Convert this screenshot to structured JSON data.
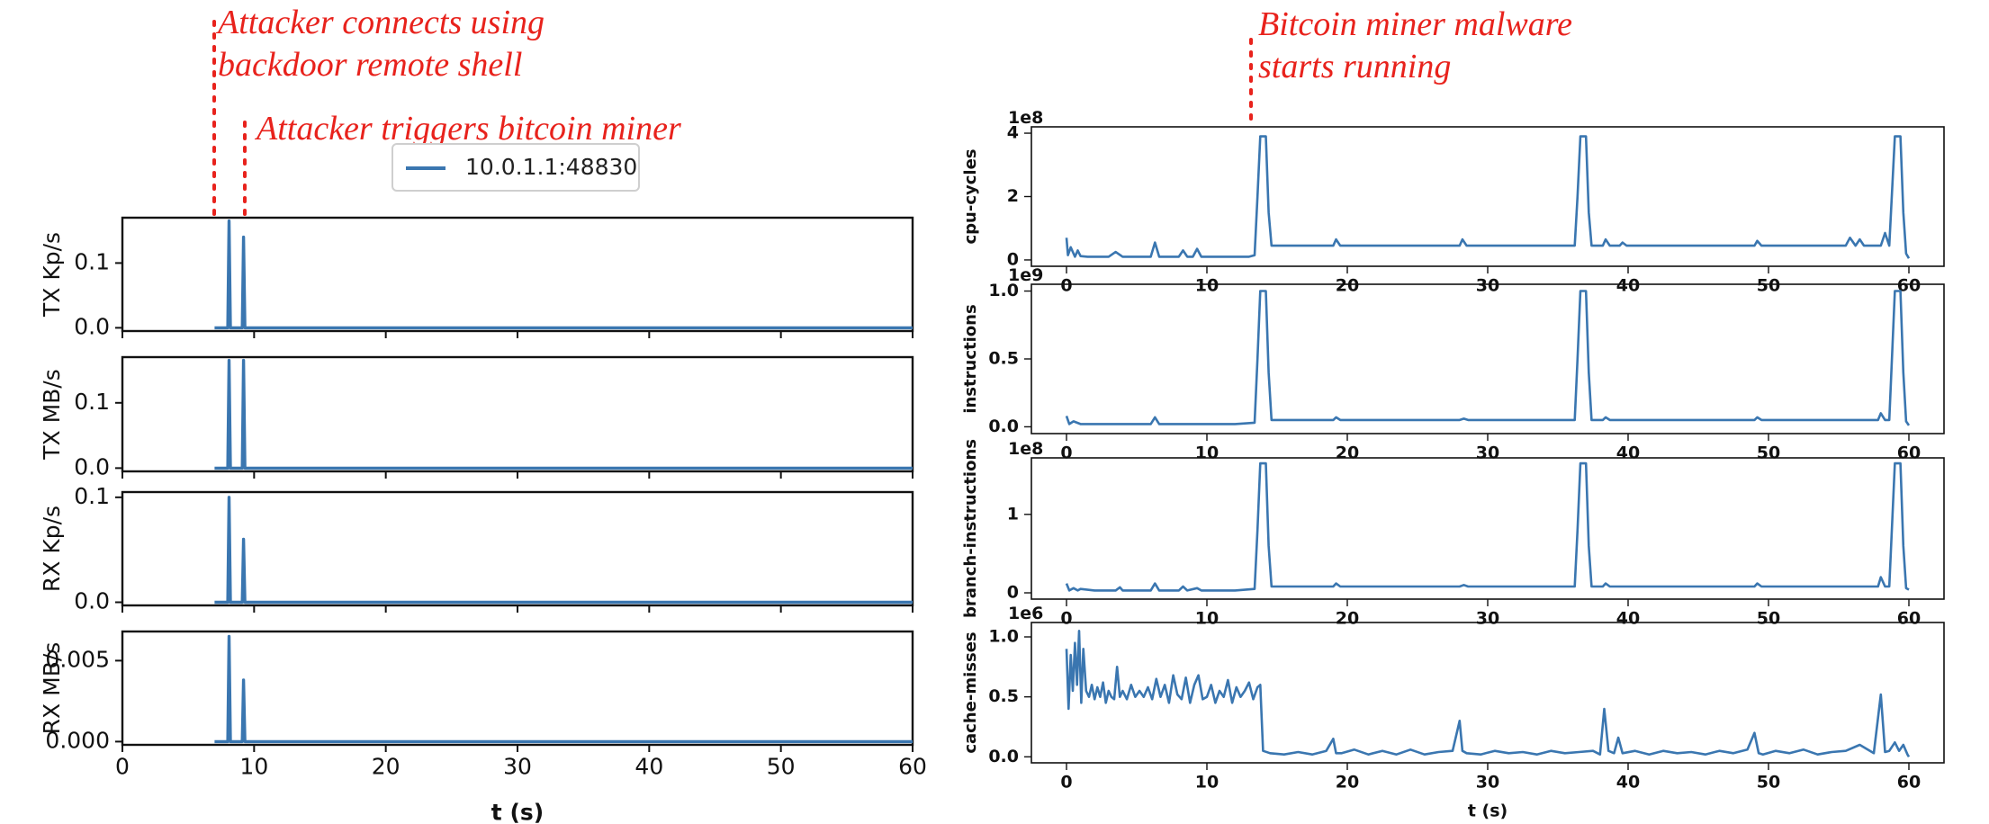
{
  "annotations": {
    "connect": [
      "Attacker connects using",
      "backdoor remote shell"
    ],
    "trigger": "Attacker triggers bitcoin miner",
    "malware": [
      "Bitcoin miner malware",
      "starts running"
    ]
  },
  "colors": {
    "series": "#3a76b0",
    "annotation": "#e8221c"
  },
  "chart_data": [
    {
      "type": "line",
      "panel": "network",
      "ylabel": "TX Kp/s",
      "xlim": [
        0,
        60
      ],
      "ylim": [
        -0.005,
        0.17
      ],
      "yticks": [
        0.0,
        0.1
      ],
      "ytick_labels": [
        "0.0",
        "0.1"
      ],
      "xtick_labels_shown": false,
      "series": [
        {
          "name": "10.0.1.1:48830",
          "x": [
            7,
            8.0,
            8.1,
            8.2,
            9.1,
            9.2,
            9.3,
            60
          ],
          "y": [
            0,
            0,
            0.165,
            0,
            0,
            0.14,
            0,
            0
          ]
        }
      ]
    },
    {
      "type": "line",
      "panel": "network",
      "ylabel": "TX MB/s",
      "xlim": [
        0,
        60
      ],
      "ylim": [
        -0.005,
        0.17
      ],
      "yticks": [
        0.0,
        0.1
      ],
      "ytick_labels": [
        "0.0",
        "0.1"
      ],
      "xtick_labels_shown": false,
      "series": [
        {
          "name": "10.0.1.1:48830",
          "x": [
            7,
            8.0,
            8.1,
            8.2,
            9.1,
            9.2,
            9.3,
            60
          ],
          "y": [
            0,
            0,
            0.165,
            0,
            0,
            0.165,
            0,
            0
          ]
        }
      ]
    },
    {
      "type": "line",
      "panel": "network",
      "ylabel": "RX Kp/s",
      "xlim": [
        0,
        60
      ],
      "ylim": [
        -0.003,
        0.105
      ],
      "yticks": [
        0.0,
        0.1
      ],
      "ytick_labels": [
        "0.0",
        "0.1"
      ],
      "xtick_labels_shown": false,
      "series": [
        {
          "name": "10.0.1.1:48830",
          "x": [
            7,
            8.0,
            8.1,
            8.2,
            9.1,
            9.2,
            9.3,
            60
          ],
          "y": [
            0,
            0,
            0.1,
            0,
            0,
            0.06,
            0,
            0
          ]
        }
      ]
    },
    {
      "type": "line",
      "panel": "network",
      "ylabel": "RX MB/s",
      "xlim": [
        0,
        60
      ],
      "ylim": [
        -0.0002,
        0.0068
      ],
      "yticks": [
        0.0,
        0.005
      ],
      "ytick_labels": [
        "0.000",
        "0.005"
      ],
      "xticks": [
        0,
        10,
        20,
        30,
        40,
        50,
        60
      ],
      "xtick_labels": [
        "0",
        "10",
        "20",
        "30",
        "40",
        "50",
        "60"
      ],
      "xlabel": "t (s)",
      "series": [
        {
          "name": "10.0.1.1:48830",
          "x": [
            7,
            8.0,
            8.1,
            8.2,
            9.1,
            9.2,
            9.3,
            60
          ],
          "y": [
            0,
            0,
            0.0065,
            0,
            0,
            0.0038,
            0,
            0
          ]
        }
      ]
    },
    {
      "type": "line",
      "panel": "perf",
      "ylabel": "cpu-cycles",
      "scale_label": "1e8",
      "xlim": [
        -2.5,
        62.5
      ],
      "ylim": [
        -0.2,
        4.2
      ],
      "yticks": [
        0,
        2,
        4
      ],
      "ytick_labels": [
        "0",
        "2",
        "4"
      ],
      "xticks": [
        0,
        10,
        20,
        30,
        40,
        50,
        60
      ],
      "xtick_labels": [
        "0",
        "10",
        "20",
        "30",
        "40",
        "50",
        "60"
      ],
      "series": [
        {
          "x": [
            0.0,
            0.1,
            0.3,
            0.6,
            0.8,
            1.0,
            1.5,
            2.0,
            3.0,
            3.5,
            4.0,
            5.0,
            6.0,
            6.3,
            6.6,
            7.0,
            8.0,
            8.3,
            8.6,
            9.0,
            9.3,
            9.6,
            10.0,
            11.0,
            12.0,
            13.0,
            13.4,
            13.6,
            13.8,
            14.0,
            14.2,
            14.4,
            14.6,
            15.0,
            17.0,
            19.0,
            19.2,
            19.5,
            22.0,
            25.0,
            28.0,
            28.2,
            28.5,
            31.0,
            34.0,
            36.2,
            36.4,
            36.6,
            36.8,
            37.0,
            37.2,
            37.4,
            38.2,
            38.4,
            38.7,
            39.4,
            39.6,
            39.9,
            42.0,
            45.0,
            49.0,
            49.2,
            49.5,
            52.0,
            55.5,
            55.8,
            56.2,
            56.5,
            56.8,
            57.2,
            58.0,
            58.3,
            58.6,
            59.0,
            59.2,
            59.4,
            59.6,
            59.8,
            60.0
          ],
          "y": [
            0.7,
            0.15,
            0.4,
            0.1,
            0.3,
            0.12,
            0.1,
            0.1,
            0.1,
            0.25,
            0.1,
            0.1,
            0.1,
            0.55,
            0.1,
            0.1,
            0.1,
            0.3,
            0.1,
            0.1,
            0.35,
            0.1,
            0.1,
            0.1,
            0.1,
            0.1,
            0.15,
            2.0,
            3.9,
            3.9,
            3.9,
            1.5,
            0.45,
            0.45,
            0.45,
            0.45,
            0.65,
            0.45,
            0.45,
            0.45,
            0.45,
            0.65,
            0.45,
            0.45,
            0.45,
            0.45,
            2.0,
            3.9,
            3.9,
            3.9,
            1.5,
            0.45,
            0.45,
            0.65,
            0.45,
            0.45,
            0.55,
            0.45,
            0.45,
            0.45,
            0.45,
            0.6,
            0.45,
            0.45,
            0.45,
            0.7,
            0.45,
            0.65,
            0.45,
            0.45,
            0.45,
            0.85,
            0.45,
            3.9,
            3.9,
            3.9,
            1.5,
            0.2,
            0.05
          ]
        }
      ]
    },
    {
      "type": "line",
      "panel": "perf",
      "ylabel": "instructions",
      "scale_label": "1e9",
      "xlim": [
        -2.5,
        62.5
      ],
      "ylim": [
        -0.05,
        1.05
      ],
      "yticks": [
        0,
        0.5,
        1.0
      ],
      "ytick_labels": [
        "0.0",
        "0.5",
        "1.0"
      ],
      "xticks": [
        0,
        10,
        20,
        30,
        40,
        50,
        60
      ],
      "xtick_labels": [
        "0",
        "10",
        "20",
        "30",
        "40",
        "50",
        "60"
      ],
      "series": [
        {
          "x": [
            0.0,
            0.2,
            0.5,
            1.0,
            3.0,
            6.0,
            6.3,
            6.6,
            9.0,
            12.0,
            13.4,
            13.6,
            13.8,
            14.0,
            14.2,
            14.4,
            14.6,
            15.0,
            19.0,
            19.2,
            19.5,
            28.0,
            28.3,
            28.6,
            36.2,
            36.4,
            36.6,
            36.8,
            37.0,
            37.2,
            37.4,
            38.2,
            38.4,
            38.7,
            42.0,
            49.0,
            49.2,
            49.5,
            55.5,
            57.8,
            58.0,
            58.3,
            58.6,
            59.0,
            59.2,
            59.4,
            59.6,
            59.8,
            60.0
          ],
          "y": [
            0.08,
            0.02,
            0.04,
            0.02,
            0.02,
            0.02,
            0.07,
            0.02,
            0.02,
            0.02,
            0.03,
            0.5,
            1.0,
            1.0,
            1.0,
            0.4,
            0.05,
            0.05,
            0.05,
            0.07,
            0.05,
            0.05,
            0.06,
            0.05,
            0.05,
            0.5,
            1.0,
            1.0,
            1.0,
            0.4,
            0.05,
            0.05,
            0.07,
            0.05,
            0.05,
            0.05,
            0.07,
            0.05,
            0.05,
            0.05,
            0.1,
            0.05,
            0.05,
            1.0,
            1.0,
            1.0,
            0.4,
            0.04,
            0.01
          ]
        }
      ]
    },
    {
      "type": "line",
      "panel": "perf",
      "ylabel": "branch-instructions",
      "scale_label": "1e8",
      "xlim": [
        -2.5,
        62.5
      ],
      "ylim": [
        -0.08,
        1.72
      ],
      "yticks": [
        0,
        1
      ],
      "ytick_labels": [
        "0",
        "1"
      ],
      "xticks": [
        0,
        10,
        20,
        30,
        40,
        50,
        60
      ],
      "xtick_labels": [
        "0",
        "10",
        "20",
        "30",
        "40",
        "50",
        "60"
      ],
      "series": [
        {
          "x": [
            0.0,
            0.2,
            0.5,
            0.8,
            1.0,
            2.0,
            3.5,
            3.8,
            4.0,
            6.0,
            6.3,
            6.6,
            8.0,
            8.3,
            8.6,
            9.3,
            9.6,
            10.0,
            12.0,
            13.4,
            13.6,
            13.8,
            14.0,
            14.2,
            14.4,
            14.6,
            15.0,
            19.0,
            19.2,
            19.5,
            28.0,
            28.3,
            28.6,
            36.2,
            36.4,
            36.6,
            36.8,
            37.0,
            37.2,
            37.4,
            38.2,
            38.4,
            38.7,
            42.0,
            49.0,
            49.2,
            49.5,
            55.5,
            57.8,
            58.0,
            58.3,
            58.6,
            59.0,
            59.2,
            59.4,
            59.6,
            59.8,
            60.0
          ],
          "y": [
            0.12,
            0.03,
            0.06,
            0.03,
            0.05,
            0.03,
            0.03,
            0.07,
            0.03,
            0.03,
            0.12,
            0.03,
            0.03,
            0.08,
            0.03,
            0.06,
            0.03,
            0.03,
            0.03,
            0.05,
            0.8,
            1.65,
            1.65,
            1.65,
            0.6,
            0.08,
            0.08,
            0.08,
            0.12,
            0.08,
            0.08,
            0.1,
            0.08,
            0.08,
            0.8,
            1.65,
            1.65,
            1.65,
            0.6,
            0.08,
            0.08,
            0.12,
            0.08,
            0.08,
            0.08,
            0.12,
            0.08,
            0.08,
            0.08,
            0.2,
            0.08,
            0.08,
            1.65,
            1.65,
            1.65,
            0.6,
            0.06,
            0.04
          ]
        }
      ]
    },
    {
      "type": "line",
      "panel": "perf",
      "ylabel": "cache-misses",
      "scale_label": "1e6",
      "xlim": [
        -2.5,
        62.5
      ],
      "ylim": [
        -0.05,
        1.12
      ],
      "yticks": [
        0,
        0.5,
        1.0
      ],
      "ytick_labels": [
        "0.0",
        "0.5",
        "1.0"
      ],
      "xticks": [
        0,
        10,
        20,
        30,
        40,
        50,
        60
      ],
      "xtick_labels": [
        "0",
        "10",
        "20",
        "30",
        "40",
        "50",
        "60"
      ],
      "xlabel": "t (s)",
      "series": [
        {
          "x": [
            0.0,
            0.15,
            0.3,
            0.45,
            0.6,
            0.75,
            0.9,
            1.05,
            1.2,
            1.4,
            1.6,
            1.8,
            2.0,
            2.2,
            2.4,
            2.6,
            2.8,
            3.0,
            3.2,
            3.4,
            3.6,
            3.8,
            4.0,
            4.3,
            4.6,
            4.9,
            5.2,
            5.5,
            5.8,
            6.1,
            6.4,
            6.7,
            7.0,
            7.3,
            7.6,
            7.9,
            8.2,
            8.5,
            8.8,
            9.1,
            9.4,
            9.7,
            10.0,
            10.3,
            10.6,
            10.9,
            11.2,
            11.5,
            11.8,
            12.1,
            12.4,
            12.7,
            13.0,
            13.3,
            13.6,
            13.8,
            14.0,
            14.5,
            15.5,
            16.5,
            17.5,
            18.5,
            19.0,
            19.2,
            19.6,
            20.5,
            21.5,
            22.5,
            23.5,
            24.5,
            25.5,
            26.5,
            27.5,
            28.0,
            28.2,
            28.5,
            29.5,
            30.5,
            31.5,
            32.5,
            33.5,
            34.5,
            35.5,
            36.5,
            37.5,
            38.0,
            38.3,
            38.6,
            39.0,
            39.3,
            39.6,
            40.5,
            41.5,
            42.5,
            43.5,
            44.5,
            45.5,
            46.5,
            47.5,
            48.5,
            49.0,
            49.3,
            49.6,
            50.5,
            51.5,
            52.5,
            53.5,
            54.5,
            55.5,
            56.5,
            57.5,
            58.0,
            58.3,
            58.6,
            59.0,
            59.3,
            59.6,
            59.9,
            60.0
          ],
          "y": [
            0.9,
            0.4,
            0.85,
            0.55,
            0.95,
            0.6,
            1.05,
            0.45,
            0.9,
            0.55,
            0.5,
            0.6,
            0.48,
            0.58,
            0.5,
            0.62,
            0.45,
            0.55,
            0.5,
            0.48,
            0.75,
            0.5,
            0.55,
            0.48,
            0.6,
            0.5,
            0.55,
            0.5,
            0.58,
            0.48,
            0.65,
            0.5,
            0.6,
            0.45,
            0.68,
            0.52,
            0.48,
            0.66,
            0.45,
            0.6,
            0.68,
            0.48,
            0.5,
            0.6,
            0.45,
            0.55,
            0.5,
            0.64,
            0.45,
            0.58,
            0.5,
            0.55,
            0.62,
            0.48,
            0.58,
            0.6,
            0.05,
            0.03,
            0.02,
            0.04,
            0.02,
            0.05,
            0.15,
            0.03,
            0.03,
            0.06,
            0.02,
            0.05,
            0.02,
            0.06,
            0.02,
            0.04,
            0.05,
            0.3,
            0.05,
            0.03,
            0.02,
            0.05,
            0.03,
            0.04,
            0.02,
            0.05,
            0.03,
            0.04,
            0.05,
            0.02,
            0.4,
            0.05,
            0.03,
            0.16,
            0.03,
            0.05,
            0.02,
            0.05,
            0.03,
            0.04,
            0.02,
            0.05,
            0.03,
            0.06,
            0.2,
            0.03,
            0.02,
            0.05,
            0.03,
            0.06,
            0.02,
            0.04,
            0.05,
            0.1,
            0.03,
            0.52,
            0.04,
            0.05,
            0.12,
            0.05,
            0.1,
            0.02,
            0.0
          ]
        }
      ]
    }
  ]
}
